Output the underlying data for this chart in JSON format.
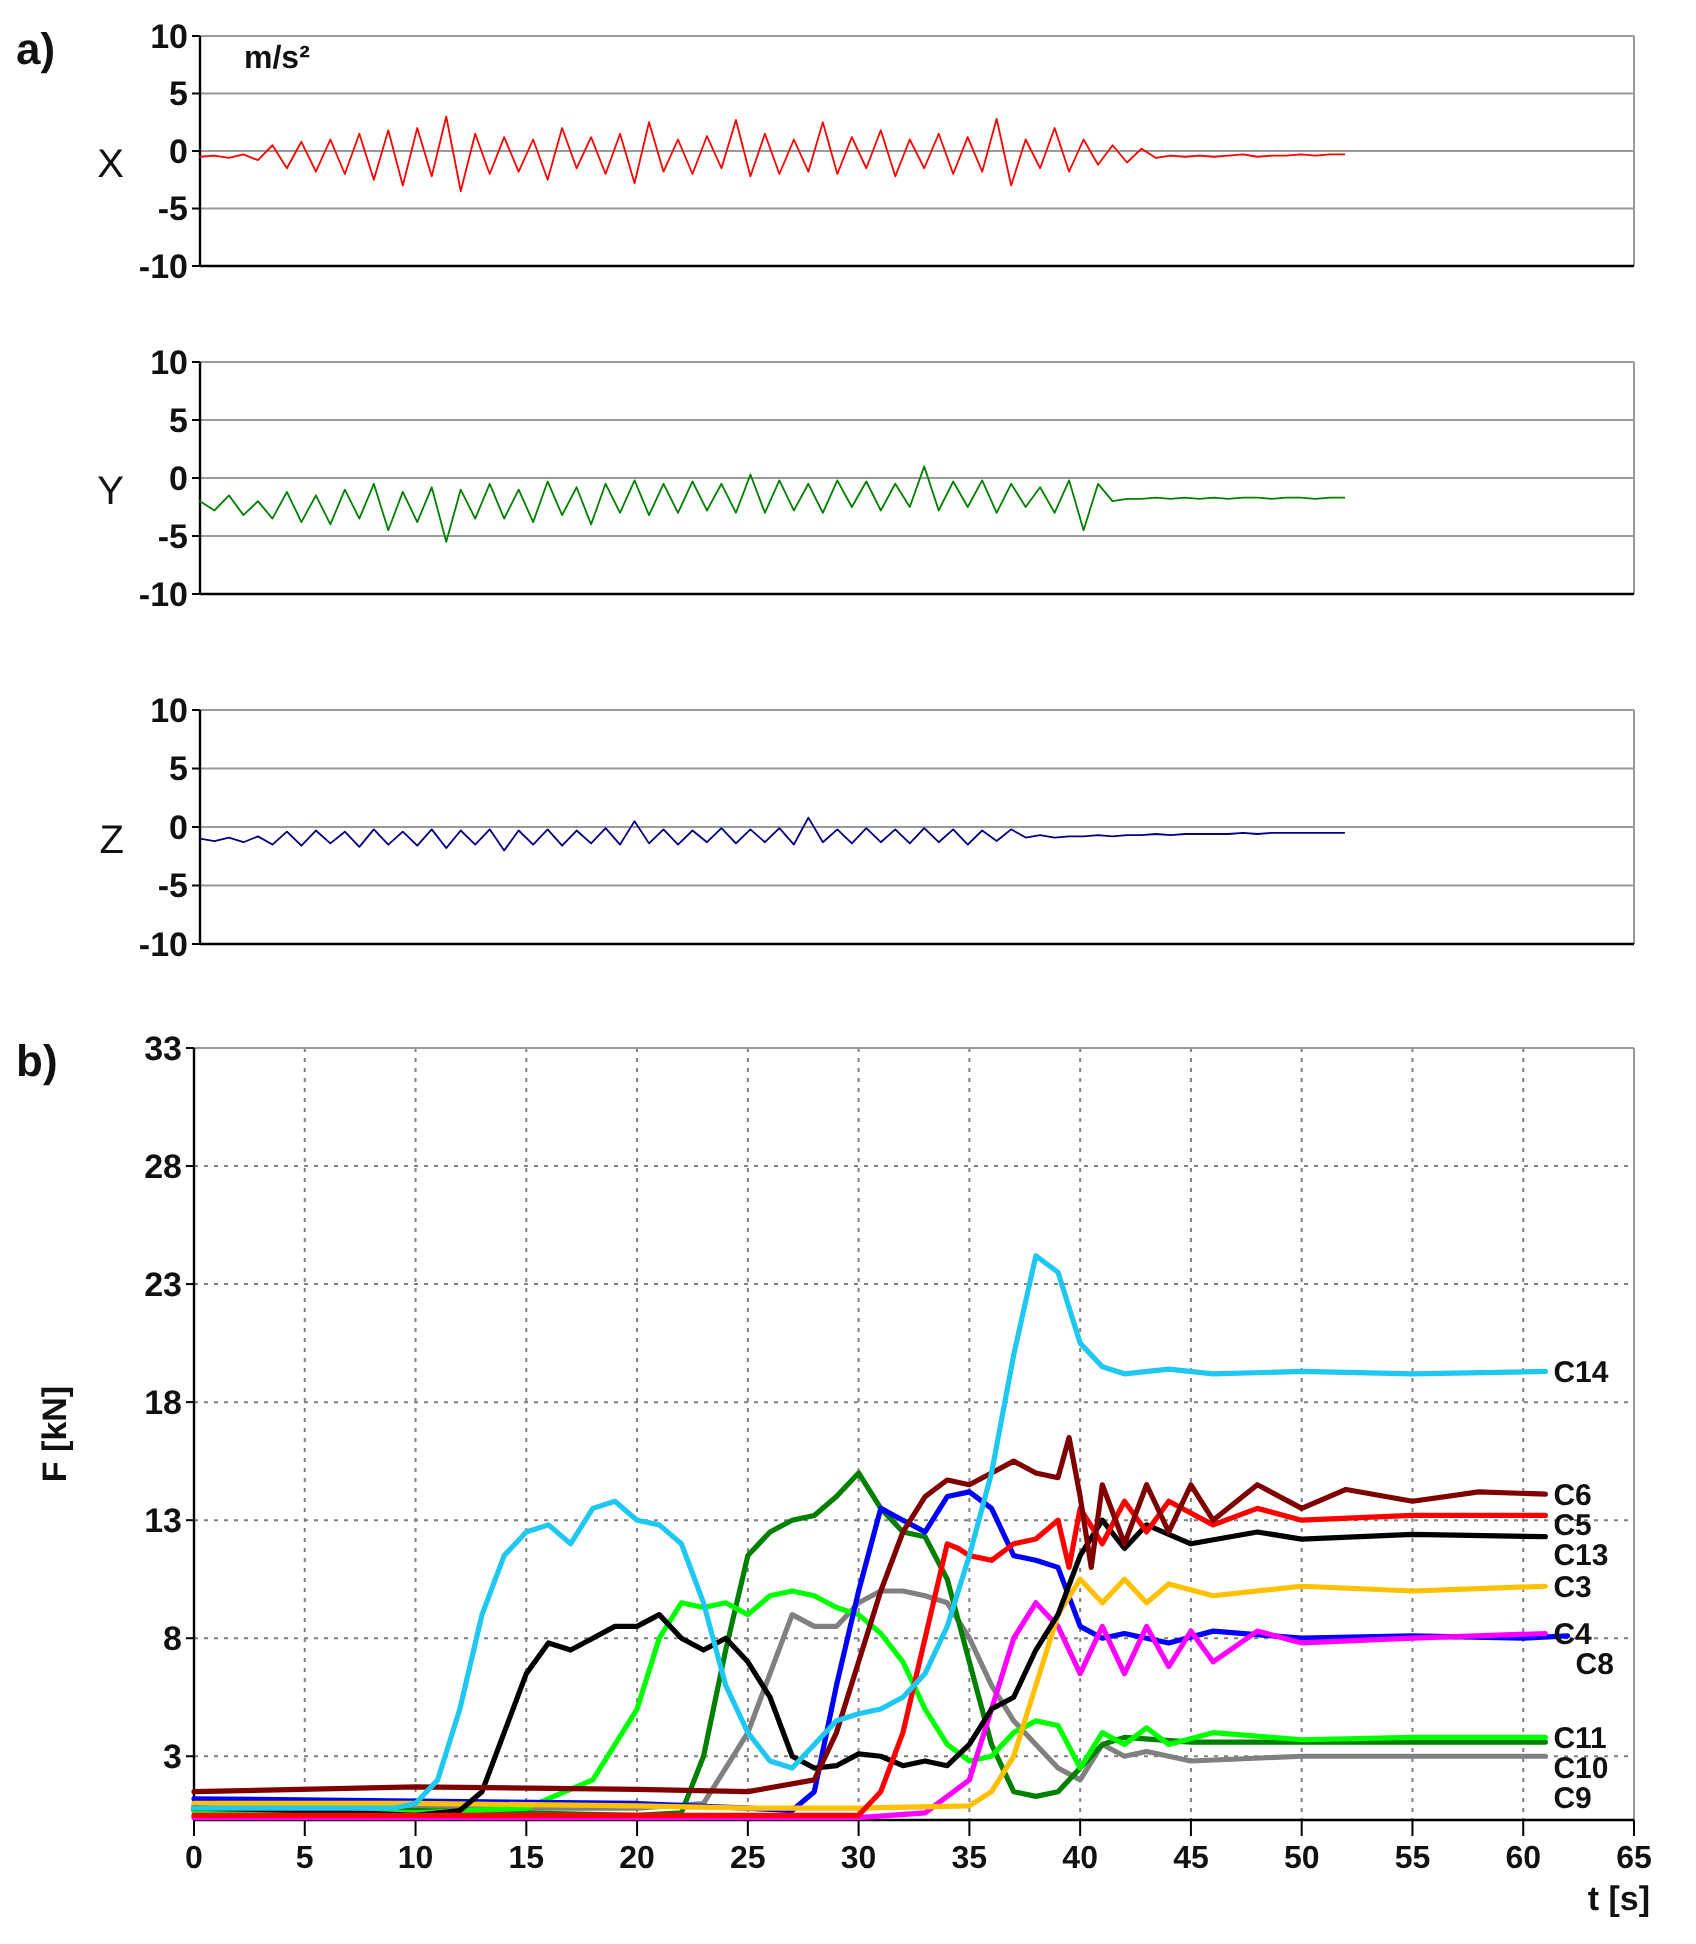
{
  "chart_data": [
    {
      "type": "line",
      "title": "a)",
      "ylabel": "X",
      "annotations": [
        "m/s²"
      ],
      "categories": [
        null,
        null,
        null,
        null,
        null,
        null,
        null,
        null,
        null,
        null,
        null,
        null,
        null,
        null,
        null,
        null,
        null,
        null,
        null,
        null,
        null,
        null,
        null,
        null,
        null,
        null,
        null,
        null,
        null,
        null,
        null,
        null,
        null,
        null,
        null,
        null,
        null,
        null,
        null,
        null,
        null,
        null,
        null,
        null,
        null,
        null,
        null,
        null,
        null,
        null,
        null,
        null,
        null,
        null,
        null,
        null,
        null,
        null,
        null,
        null,
        null,
        null,
        null,
        null,
        null,
        null,
        null,
        null,
        null,
        null,
        null,
        null,
        null,
        null,
        null,
        null,
        null,
        null,
        null,
        null,
        null,
        null,
        null,
        null,
        null,
        null,
        null,
        null,
        null,
        null,
        null,
        null,
        null,
        null,
        null,
        null,
        null,
        null,
        null,
        null
      ],
      "series": [
        {
          "color": "#ff0000",
          "values": [
            -0.5,
            -0.4,
            -0.6,
            -0.3,
            -0.8,
            0.5,
            -1.5,
            0.8,
            -1.8,
            1.0,
            -2.0,
            1.5,
            -2.5,
            1.8,
            -3.0,
            2.0,
            -2.2,
            3.0,
            -3.5,
            1.5,
            -2.0,
            1.2,
            -1.8,
            1.0,
            -2.5,
            2.0,
            -1.5,
            1.2,
            -2.0,
            1.5,
            -2.8,
            2.5,
            -1.8,
            1.0,
            -2.0,
            1.3,
            -1.5,
            2.7,
            -2.2,
            1.5,
            -2.0,
            1.0,
            -1.8,
            2.5,
            -2.0,
            1.2,
            -1.5,
            1.8,
            -2.2,
            1.0,
            -1.5,
            1.5,
            -2.0,
            1.2,
            -1.8,
            2.8,
            -3.0,
            1.0,
            -1.5,
            2.0,
            -1.8,
            1.0,
            -1.2,
            0.5,
            -1.0,
            0.2,
            -0.6,
            -0.4,
            -0.5,
            -0.4,
            -0.5,
            -0.4,
            -0.3,
            -0.5,
            -0.4,
            -0.4,
            -0.3,
            -0.4,
            -0.3,
            -0.3,
            null,
            null,
            null,
            null,
            null,
            null,
            null,
            null,
            null,
            null,
            null,
            null,
            null,
            null,
            null,
            null,
            null,
            null,
            null,
            null
          ]
        }
      ],
      "ylim": [
        -10,
        10
      ],
      "yticks": [
        -10,
        -5,
        0,
        5,
        10
      ],
      "grid": "y",
      "tick_labels": "y"
    },
    {
      "type": "line",
      "ylabel": "Y",
      "categories": [
        null,
        null,
        null,
        null,
        null,
        null,
        null,
        null,
        null,
        null,
        null,
        null,
        null,
        null,
        null,
        null,
        null,
        null,
        null,
        null,
        null,
        null,
        null,
        null,
        null,
        null,
        null,
        null,
        null,
        null,
        null,
        null,
        null,
        null,
        null,
        null,
        null,
        null,
        null,
        null,
        null,
        null,
        null,
        null,
        null,
        null,
        null,
        null,
        null,
        null,
        null,
        null,
        null,
        null,
        null,
        null,
        null,
        null,
        null,
        null,
        null,
        null,
        null,
        null,
        null,
        null,
        null,
        null,
        null,
        null,
        null,
        null,
        null,
        null,
        null,
        null,
        null,
        null,
        null,
        null,
        null,
        null,
        null,
        null,
        null,
        null,
        null,
        null,
        null,
        null,
        null,
        null,
        null,
        null,
        null,
        null,
        null,
        null,
        null,
        null
      ],
      "series": [
        {
          "color": "#008000",
          "values": [
            -2.0,
            -2.8,
            -1.5,
            -3.2,
            -2.0,
            -3.5,
            -1.2,
            -3.8,
            -1.5,
            -4.0,
            -1.0,
            -3.5,
            -0.5,
            -4.5,
            -1.2,
            -3.8,
            -0.8,
            -5.5,
            -1.0,
            -3.5,
            -0.5,
            -3.5,
            -1.0,
            -3.8,
            -0.3,
            -3.2,
            -0.8,
            -4.0,
            -0.5,
            -3.0,
            -0.2,
            -3.2,
            -0.5,
            -3.0,
            -0.3,
            -2.8,
            -0.5,
            -3.0,
            0.3,
            -3.0,
            -0.2,
            -2.8,
            -0.5,
            -3.0,
            -0.2,
            -2.5,
            -0.3,
            -2.8,
            -0.5,
            -2.5,
            1.0,
            -2.8,
            -0.3,
            -2.5,
            -0.2,
            -3.0,
            -0.5,
            -2.5,
            -0.8,
            -3.0,
            -0.2,
            -4.5,
            -0.5,
            -2.0,
            -1.8,
            -1.8,
            -1.7,
            -1.8,
            -1.7,
            -1.8,
            -1.7,
            -1.8,
            -1.7,
            -1.7,
            -1.8,
            -1.7,
            -1.7,
            -1.8,
            -1.7,
            -1.7,
            null,
            null,
            null,
            null,
            null,
            null,
            null,
            null,
            null,
            null,
            null,
            null,
            null,
            null,
            null,
            null,
            null,
            null,
            null,
            null
          ]
        }
      ],
      "ylim": [
        -10,
        10
      ],
      "yticks": [
        -10,
        -5,
        0,
        5,
        10
      ],
      "grid": "y",
      "tick_labels": "y"
    },
    {
      "type": "line",
      "ylabel": "Z",
      "categories": [
        null,
        null,
        null,
        null,
        null,
        null,
        null,
        null,
        null,
        null,
        null,
        null,
        null,
        null,
        null,
        null,
        null,
        null,
        null,
        null,
        null,
        null,
        null,
        null,
        null,
        null,
        null,
        null,
        null,
        null,
        null,
        null,
        null,
        null,
        null,
        null,
        null,
        null,
        null,
        null,
        null,
        null,
        null,
        null,
        null,
        null,
        null,
        null,
        null,
        null,
        null,
        null,
        null,
        null,
        null,
        null,
        null,
        null,
        null,
        null,
        null,
        null,
        null,
        null,
        null,
        null,
        null,
        null,
        null,
        null,
        null,
        null,
        null,
        null,
        null,
        null,
        null,
        null,
        null,
        null,
        null,
        null,
        null,
        null,
        null,
        null,
        null,
        null,
        null,
        null,
        null,
        null,
        null,
        null,
        null,
        null,
        null,
        null,
        null,
        null
      ],
      "series": [
        {
          "color": "#000080",
          "values": [
            -1.0,
            -1.2,
            -0.9,
            -1.3,
            -0.8,
            -1.5,
            -0.4,
            -1.6,
            -0.3,
            -1.4,
            -0.4,
            -1.7,
            -0.2,
            -1.5,
            -0.4,
            -1.6,
            -0.2,
            -1.8,
            -0.3,
            -1.5,
            -0.2,
            -2.0,
            -0.3,
            -1.5,
            -0.2,
            -1.6,
            -0.3,
            -1.4,
            -0.1,
            -1.5,
            0.5,
            -1.4,
            -0.2,
            -1.5,
            -0.3,
            -1.3,
            -0.1,
            -1.4,
            -0.2,
            -1.3,
            -0.1,
            -1.5,
            0.8,
            -1.3,
            -0.2,
            -1.4,
            -0.1,
            -1.3,
            -0.2,
            -1.4,
            -0.1,
            -1.3,
            -0.2,
            -1.5,
            -0.3,
            -1.2,
            -0.2,
            -0.9,
            -0.7,
            -0.9,
            -0.8,
            -0.8,
            -0.7,
            -0.8,
            -0.7,
            -0.7,
            -0.6,
            -0.7,
            -0.6,
            -0.6,
            -0.6,
            -0.6,
            -0.5,
            -0.6,
            -0.5,
            -0.5,
            -0.5,
            -0.5,
            -0.5,
            -0.5,
            null,
            null,
            null,
            null,
            null,
            null,
            null,
            null,
            null,
            null,
            null,
            null,
            null,
            null,
            null,
            null,
            null,
            null,
            null,
            null
          ]
        }
      ],
      "ylim": [
        -10,
        10
      ],
      "yticks": [
        -10,
        -5,
        0,
        5,
        10
      ],
      "grid": "y",
      "tick_labels": "y"
    },
    {
      "type": "line",
      "title": "b)",
      "xlabel": "t [s]",
      "ylabel": "F [kN]",
      "xlim": [
        0,
        65
      ],
      "xticks": [
        0,
        5,
        10,
        15,
        20,
        25,
        30,
        35,
        40,
        45,
        50,
        55,
        60,
        65
      ],
      "ylim": [
        0.3,
        33
      ],
      "yticks": [
        3,
        8,
        13,
        18,
        23,
        28,
        33
      ],
      "grid": true,
      "series": [
        {
          "name": "C14",
          "color": "#1ec8f0",
          "x": [
            0,
            5,
            9,
            10,
            11,
            12,
            13,
            14,
            15,
            16,
            17,
            18,
            19,
            20,
            21,
            22,
            23,
            24,
            25,
            26,
            27,
            28,
            29,
            30,
            31,
            32,
            33,
            34,
            35,
            36,
            37,
            38,
            39,
            40,
            41,
            42,
            44,
            46,
            50,
            55,
            61
          ],
          "values": [
            0.8,
            0.8,
            0.8,
            1.0,
            2,
            5,
            9,
            11.5,
            12.5,
            12.8,
            12,
            13.5,
            13.8,
            13,
            12.8,
            12,
            9.5,
            6,
            4,
            2.8,
            2.5,
            3.5,
            4.5,
            4.8,
            5,
            5.5,
            6.5,
            8.5,
            11.5,
            15,
            20,
            24.2,
            23.5,
            20.5,
            19.5,
            19.2,
            19.4,
            19.2,
            19.3,
            19.2,
            19.3
          ]
        },
        {
          "name": "C6",
          "color": "#800000",
          "x": [
            0,
            10,
            20,
            25,
            28,
            29,
            30,
            31,
            32,
            33,
            34,
            35,
            36,
            37,
            38,
            39,
            39.5,
            40,
            40.5,
            41,
            42,
            43,
            44,
            45,
            46,
            48,
            50,
            52,
            55,
            58,
            61
          ],
          "values": [
            1.5,
            1.7,
            1.6,
            1.5,
            2,
            4,
            7,
            10,
            12.5,
            14,
            14.7,
            14.5,
            15,
            15.5,
            15,
            14.8,
            16.5,
            14,
            11,
            14.5,
            12,
            14.5,
            12.5,
            14.5,
            13,
            14.5,
            13.5,
            14.3,
            13.8,
            14.2,
            14.1
          ]
        },
        {
          "name": "C5",
          "color": "#ff0000",
          "x": [
            0,
            30,
            31,
            32,
            33,
            34,
            34.5,
            35,
            36,
            37,
            38,
            39,
            39.5,
            40,
            41,
            42,
            43,
            44,
            46,
            48,
            50,
            55,
            61
          ],
          "values": [
            0.5,
            0.5,
            1.5,
            4,
            8,
            12,
            11.8,
            11.5,
            11.3,
            12,
            12.2,
            13,
            11,
            13.5,
            12,
            13.8,
            12.5,
            13.8,
            12.8,
            13.5,
            13,
            13.2,
            13.2
          ]
        },
        {
          "name": "C13",
          "color": "#000000",
          "x": [
            0,
            5,
            10,
            12,
            13,
            14,
            15,
            16,
            17,
            18,
            19,
            20,
            21,
            22,
            23,
            24,
            25,
            26,
            27,
            28,
            29,
            30,
            31,
            32,
            33,
            34,
            35,
            36,
            37,
            38,
            39,
            40,
            41,
            42,
            43,
            45,
            48,
            50,
            55,
            61
          ],
          "values": [
            0.8,
            0.7,
            0.5,
            0.7,
            1.5,
            4,
            6.5,
            7.8,
            7.5,
            8,
            8.5,
            8.5,
            9,
            8,
            7.5,
            8,
            7,
            5.5,
            3,
            2.5,
            2.6,
            3.1,
            3,
            2.6,
            2.8,
            2.6,
            3.5,
            5,
            5.5,
            7.5,
            9,
            11.5,
            13,
            11.8,
            12.8,
            12,
            12.5,
            12.2,
            12.4,
            12.3
          ]
        },
        {
          "name": "C3",
          "color": "#ffc000",
          "x": [
            0,
            10,
            20,
            25,
            30,
            35,
            36,
            37,
            38,
            39,
            40,
            41,
            42,
            43,
            44,
            46,
            50,
            55,
            61
          ],
          "values": [
            1.0,
            1.0,
            0.9,
            0.8,
            0.8,
            0.9,
            1.5,
            3,
            6,
            9,
            10.5,
            9.5,
            10.5,
            9.5,
            10.3,
            9.8,
            10.2,
            10,
            10.2
          ]
        },
        {
          "name": "C4",
          "color": "#ff00ff",
          "x": [
            0,
            30,
            33,
            35,
            36,
            37,
            38,
            39,
            40,
            41,
            42,
            43,
            44,
            45,
            46,
            48,
            50,
            55,
            61
          ],
          "values": [
            0.4,
            0.4,
            0.6,
            2,
            5,
            8,
            9.5,
            8.5,
            6.5,
            8.5,
            6.5,
            8.5,
            6.8,
            8.3,
            7,
            8.3,
            7.8,
            8,
            8.2
          ]
        },
        {
          "name": "C8",
          "color": "#0000ff",
          "x": [
            0,
            10,
            20,
            25,
            27,
            28,
            29,
            30,
            31,
            32,
            33,
            34,
            35,
            36,
            37,
            38,
            39,
            40,
            41,
            42,
            44,
            46,
            50,
            55,
            60,
            62
          ],
          "values": [
            1.2,
            1.1,
            1.0,
            0.8,
            0.7,
            1.5,
            6,
            10,
            13.5,
            13,
            12.5,
            14,
            14.2,
            13.5,
            11.5,
            11.3,
            11,
            8.5,
            8,
            8.2,
            7.8,
            8.3,
            8,
            8.1,
            8,
            8.1
          ]
        },
        {
          "name": "C11",
          "color": "#00ff00",
          "x": [
            0,
            10,
            15,
            18,
            20,
            21,
            22,
            23,
            24,
            25,
            26,
            27,
            28,
            29,
            30,
            31,
            32,
            33,
            34,
            35,
            36,
            37,
            38,
            39,
            40,
            41,
            42,
            43,
            44,
            46,
            50,
            55,
            61
          ],
          "values": [
            0.7,
            0.6,
            0.8,
            2,
            5,
            8,
            9.5,
            9.3,
            9.5,
            9,
            9.8,
            10,
            9.8,
            9.3,
            9,
            8.2,
            7,
            5,
            3.5,
            2.8,
            3,
            4,
            4.5,
            4.3,
            2.5,
            4,
            3.5,
            4.2,
            3.5,
            4,
            3.7,
            3.8,
            3.8
          ]
        },
        {
          "name": "C10",
          "color": "#008000",
          "x": [
            0,
            10,
            20,
            22,
            23,
            24,
            25,
            26,
            27,
            28,
            29,
            30,
            31,
            32,
            33,
            34,
            35,
            36,
            37,
            38,
            39,
            40,
            41,
            42,
            45,
            50,
            61
          ],
          "values": [
            0.7,
            0.7,
            0.5,
            0.6,
            3,
            7.5,
            11.5,
            12.5,
            13,
            13.2,
            14,
            15,
            13.5,
            12.5,
            12.3,
            10.5,
            7,
            3.5,
            1.5,
            1.3,
            1.5,
            2.5,
            3.5,
            3.8,
            3.6,
            3.6,
            3.6
          ]
        },
        {
          "name": "C9",
          "color": "#808080",
          "x": [
            0,
            10,
            20,
            23,
            24,
            25,
            26,
            27,
            28,
            29,
            30,
            31,
            32,
            33,
            34,
            35,
            36,
            37,
            38,
            39,
            40,
            41,
            42,
            43,
            45,
            50,
            61
          ],
          "values": [
            0.9,
            0.8,
            0.8,
            1,
            2.5,
            4,
            6.5,
            9,
            8.5,
            8.5,
            9.5,
            10,
            10,
            9.8,
            9.5,
            8,
            6,
            4.5,
            3.5,
            2.5,
            2,
            3.5,
            3,
            3.2,
            2.8,
            3,
            3
          ]
        }
      ]
    }
  ]
}
